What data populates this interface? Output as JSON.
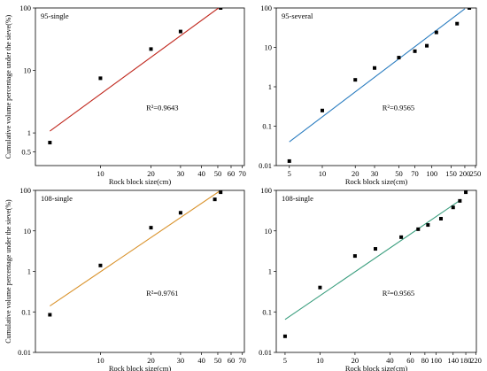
{
  "chart_data": [
    {
      "type": "scatter",
      "title": "95-single",
      "xlabel": "Rock block size(cm)",
      "ylabel": "Cumulative volume percentage under the sieve(%)",
      "xscale": "log",
      "yscale": "log",
      "xlim": [
        4.1,
        72
      ],
      "ylim": [
        0.3,
        100
      ],
      "xticks": [
        10,
        20,
        30,
        40,
        50,
        60,
        70
      ],
      "xtick_labels": [
        "10",
        "20",
        "30",
        "40",
        "50",
        "60",
        "70"
      ],
      "yticks": [
        0.5,
        1,
        10,
        100
      ],
      "ytick_labels": [
        "0.5",
        "1",
        "10",
        "100"
      ],
      "annotation": "R²=0.9643",
      "line_color": "#c0281e",
      "fit": {
        "x": [
          5,
          50.5
        ],
        "y": [
          1.07,
          100
        ]
      },
      "points": {
        "x": [
          5,
          10,
          20,
          30,
          52
        ],
        "y": [
          0.7,
          7.5,
          22,
          42,
          100
        ]
      }
    },
    {
      "type": "scatter",
      "title": "95-several",
      "xlabel": "Rock block size(cm)",
      "ylabel": "",
      "xscale": "log",
      "yscale": "log",
      "xlim": [
        3.8,
        255
      ],
      "ylim": [
        0.01,
        100
      ],
      "xticks": [
        5,
        10,
        20,
        30,
        50,
        70,
        100,
        150,
        200,
        250
      ],
      "xtick_labels": [
        "5",
        "10",
        "20",
        "30",
        "50",
        "70",
        "100",
        "150",
        "200",
        "250"
      ],
      "yticks": [
        0.01,
        0.1,
        1,
        10,
        100
      ],
      "ytick_labels": [
        "0.01",
        "0.1",
        "1",
        "10",
        "100"
      ],
      "annotation": "R²=0.9565",
      "line_color": "#2b7dc0",
      "fit": {
        "x": [
          5,
          200
        ],
        "y": [
          0.04,
          95
        ]
      },
      "points": {
        "x": [
          5,
          10,
          20,
          30,
          50,
          70,
          90,
          110,
          170,
          220
        ],
        "y": [
          0.013,
          0.25,
          1.5,
          3,
          5.5,
          8,
          11,
          24,
          40,
          100
        ]
      }
    },
    {
      "type": "scatter",
      "title": "108-single",
      "xlabel": "Rock block size(cm)",
      "ylabel": "Cumulative volume percentage under the sieve(%)",
      "xscale": "log",
      "yscale": "log",
      "xlim": [
        4.1,
        72
      ],
      "ylim": [
        0.01,
        100
      ],
      "xticks": [
        10,
        20,
        30,
        40,
        50,
        60,
        70
      ],
      "xtick_labels": [
        "10",
        "20",
        "30",
        "40",
        "50",
        "60",
        "70"
      ],
      "yticks": [
        0.01,
        0.1,
        1,
        10,
        100
      ],
      "ytick_labels": [
        "0.01",
        "0.1",
        "1",
        "10",
        "100"
      ],
      "annotation": "R²=0.9761",
      "line_color": "#d9922b",
      "fit": {
        "x": [
          5,
          52
        ],
        "y": [
          0.14,
          100
        ]
      },
      "points": {
        "x": [
          5,
          10,
          20,
          30,
          48,
          52
        ],
        "y": [
          0.085,
          1.4,
          12,
          28,
          60,
          90
        ]
      }
    },
    {
      "type": "scatter",
      "title": "108-single",
      "xlabel": "Rock block size(cm)",
      "ylabel": "",
      "xscale": "log",
      "yscale": "log",
      "xlim": [
        4.2,
        222
      ],
      "ylim": [
        0.01,
        100
      ],
      "xticks": [
        5,
        10,
        20,
        40,
        60,
        80,
        100,
        140,
        180,
        220
      ],
      "xtick_labels": [
        "5",
        "10",
        "20",
        "40",
        "60",
        "80",
        "100",
        "140",
        "180",
        "220"
      ],
      "yticks": [
        0.01,
        0.1,
        1,
        10,
        100
      ],
      "ytick_labels": [
        "0.01",
        "0.1",
        "1",
        "10",
        "100"
      ],
      "annotation": "R²=0.9565",
      "line_color": "#3a9e7e",
      "fit": {
        "x": [
          5,
          165
        ],
        "y": [
          0.065,
          60
        ]
      },
      "points": {
        "x": [
          5,
          10,
          20,
          30,
          50,
          70,
          85,
          110,
          140,
          160,
          180
        ],
        "y": [
          0.025,
          0.4,
          2.4,
          3.6,
          7,
          11,
          14,
          20,
          38,
          55,
          90
        ]
      }
    }
  ]
}
